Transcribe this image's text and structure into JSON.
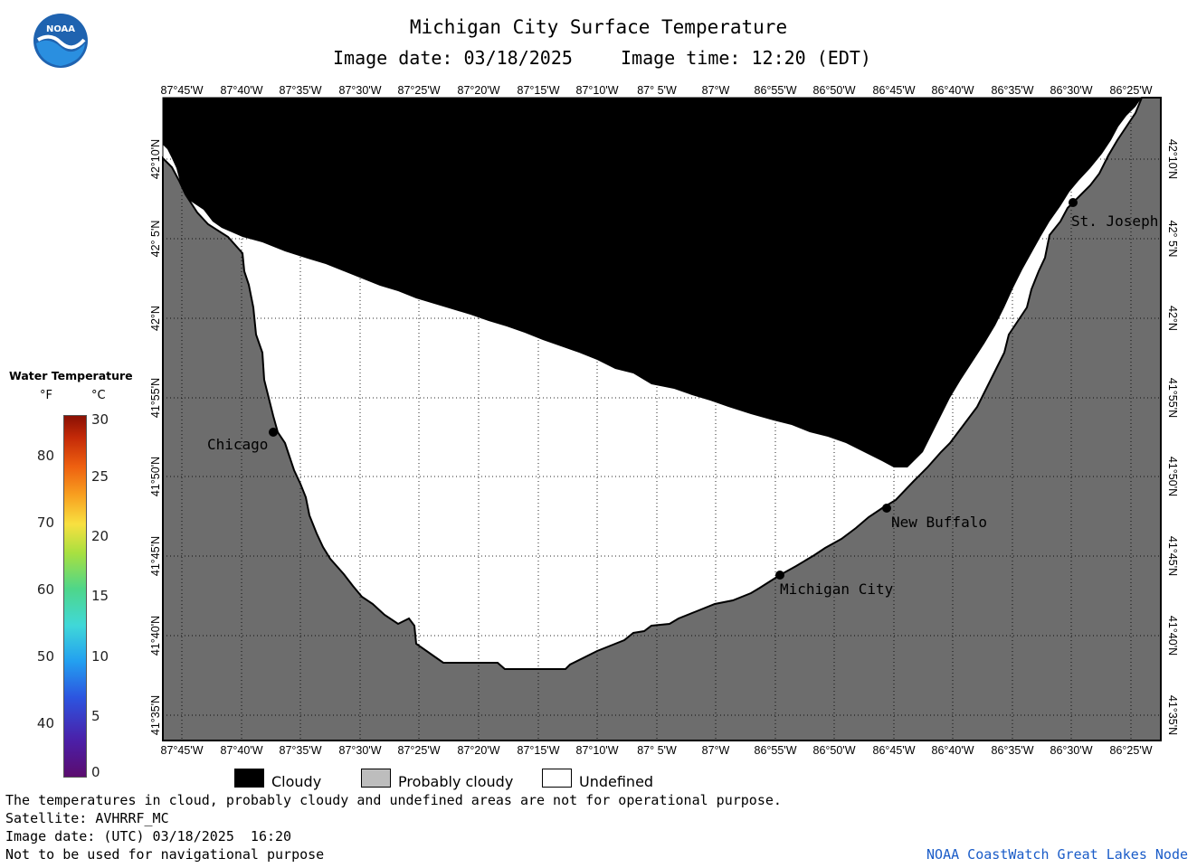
{
  "header": {
    "title": "Michigan City Surface Temperature",
    "image_date": "Image date: 03/18/2025",
    "image_time": "Image time: 12:20 (EDT)"
  },
  "logo": {
    "text": "NOAA",
    "icon": "noaa-logo-icon"
  },
  "map": {
    "lon_labels": [
      "87°45'W",
      "87°40'W",
      "87°35'W",
      "87°30'W",
      "87°25'W",
      "87°20'W",
      "87°15'W",
      "87°10'W",
      "87° 5'W",
      "87°W",
      "86°55'W",
      "86°50'W",
      "86°45'W",
      "86°40'W",
      "86°35'W",
      "86°30'W",
      "86°25'W"
    ],
    "lat_labels": [
      "42°10'N",
      "42° 5'N",
      "42°N",
      "41°55'N",
      "41°50'N",
      "41°45'N",
      "41°40'N",
      "41°35'N"
    ],
    "cities": [
      {
        "name": "Chicago"
      },
      {
        "name": "St. Joseph"
      },
      {
        "name": "New Buffalo"
      },
      {
        "name": "Michigan City"
      }
    ],
    "colors": {
      "land": "#6d6d6d",
      "cloudy": "#000000",
      "undefined": "#ffffff",
      "grid": "#000000"
    }
  },
  "legend": {
    "title": "Water Temperature",
    "unit_f": "°F",
    "unit_c": "°C",
    "f_ticks": [
      "80",
      "70",
      "60",
      "50",
      "40"
    ],
    "c_ticks": [
      "30",
      "25",
      "20",
      "15",
      "10",
      "5",
      "0"
    ]
  },
  "key": {
    "cloudy": "Cloudy",
    "probably_cloudy": "Probably cloudy",
    "undefined": "Undefined",
    "colors": {
      "cloudy": "#000000",
      "probably_cloudy": "#bdbdbd",
      "undefined": "#ffffff"
    }
  },
  "footer": {
    "disclaimer": "The temperatures in cloud, probably cloudy and undefined areas are not for operational purpose.",
    "satellite": "Satellite: AVHRRF_MC",
    "utc_date": "Image date: (UTC) 03/18/2025  16:20",
    "nav_warning": "Not to be used for navigational purpose",
    "credit": "NOAA CoastWatch Great Lakes Node"
  }
}
